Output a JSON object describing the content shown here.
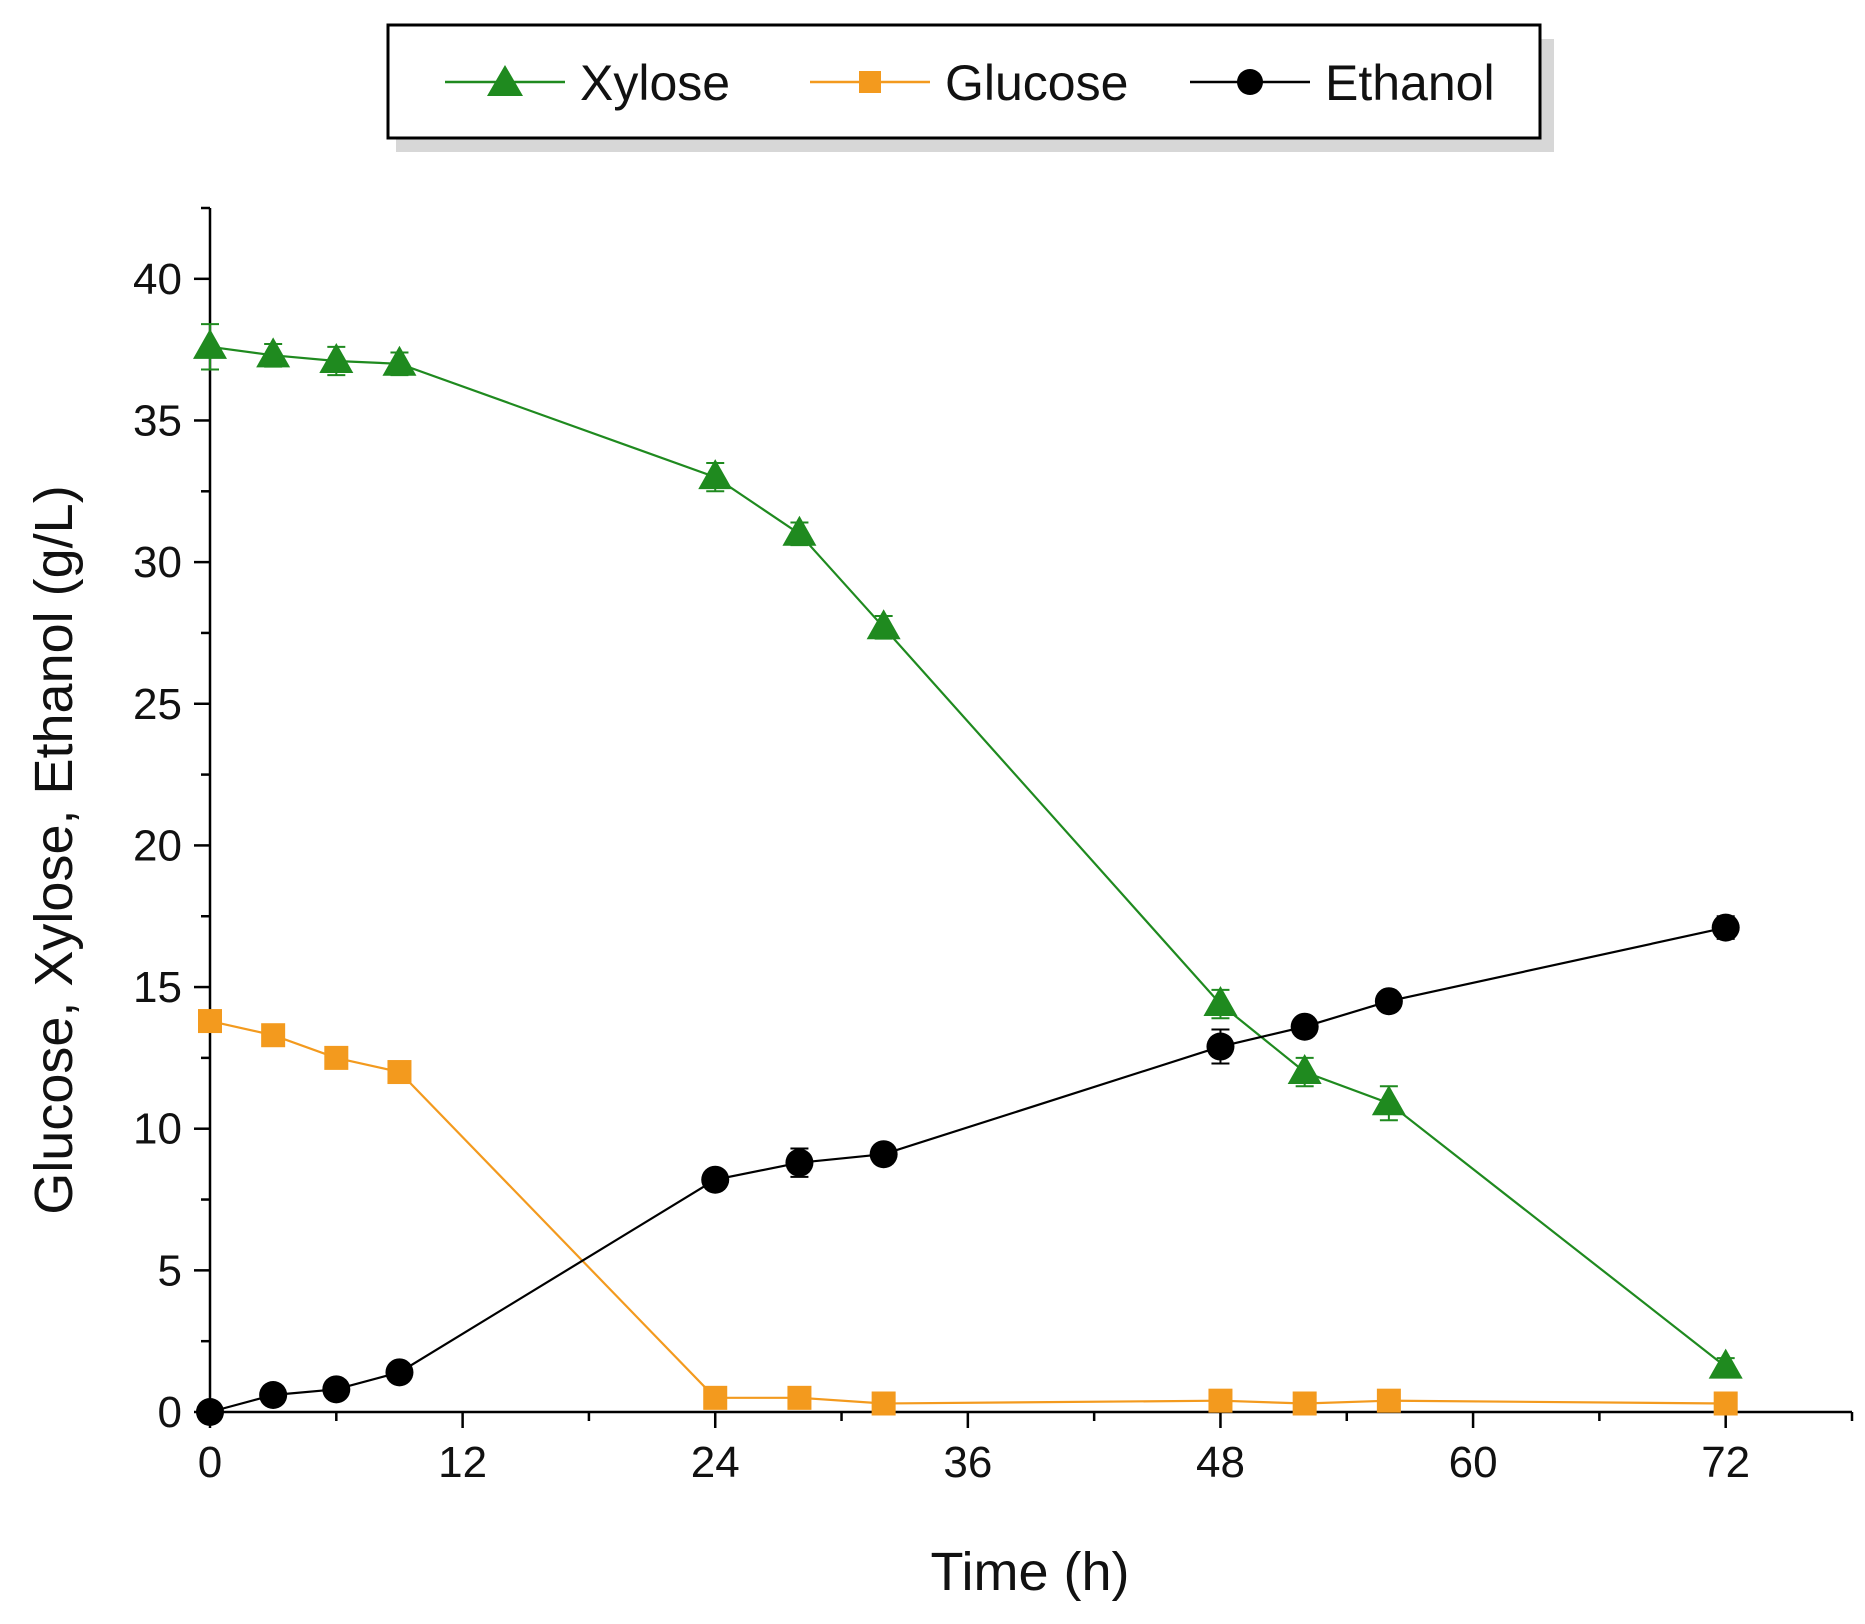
{
  "chart_data": {
    "type": "line",
    "title": "",
    "xlabel": "Time (h)",
    "ylabel": "Glucose, Xylose, Ethanol (g/L)",
    "xlim": [
      0,
      78
    ],
    "ylim": [
      0,
      42.5
    ],
    "xticks": [
      0,
      12,
      24,
      36,
      48,
      60,
      72
    ],
    "yticks": [
      0,
      5,
      10,
      15,
      20,
      25,
      30,
      35,
      40
    ],
    "legend_position": "top",
    "series": [
      {
        "name": "Xylose",
        "color": "#1f8a1f",
        "marker": "triangle",
        "x": [
          0,
          3,
          6,
          9,
          24,
          28,
          32,
          48,
          52,
          56,
          72
        ],
        "y": [
          37.6,
          37.3,
          37.1,
          37.0,
          33.0,
          31.0,
          27.7,
          14.4,
          12.0,
          10.9,
          1.6
        ],
        "error": [
          0.8,
          0.4,
          0.5,
          0.4,
          0.5,
          0.4,
          0.4,
          0.5,
          0.5,
          0.6,
          0.3
        ]
      },
      {
        "name": "Glucose",
        "color": "#f39a1e",
        "marker": "square",
        "x": [
          0,
          3,
          6,
          9,
          24,
          28,
          32,
          48,
          52,
          56,
          72
        ],
        "y": [
          13.8,
          13.3,
          12.5,
          12.0,
          0.5,
          0.5,
          0.3,
          0.4,
          0.3,
          0.4,
          0.3
        ],
        "error": [
          0.3,
          0.2,
          0.2,
          0.2,
          0.1,
          0.1,
          0.1,
          0.1,
          0.1,
          0.1,
          0.1
        ]
      },
      {
        "name": "Ethanol",
        "color": "#000000",
        "marker": "circle",
        "x": [
          0,
          3,
          6,
          9,
          24,
          28,
          32,
          48,
          52,
          56,
          72
        ],
        "y": [
          0.0,
          0.6,
          0.8,
          1.4,
          8.2,
          8.8,
          9.1,
          12.9,
          13.6,
          14.5,
          17.1
        ],
        "error": [
          0.1,
          0.1,
          0.1,
          0.2,
          0.2,
          0.5,
          0.2,
          0.6,
          0.3,
          0.3,
          0.4
        ]
      }
    ]
  }
}
